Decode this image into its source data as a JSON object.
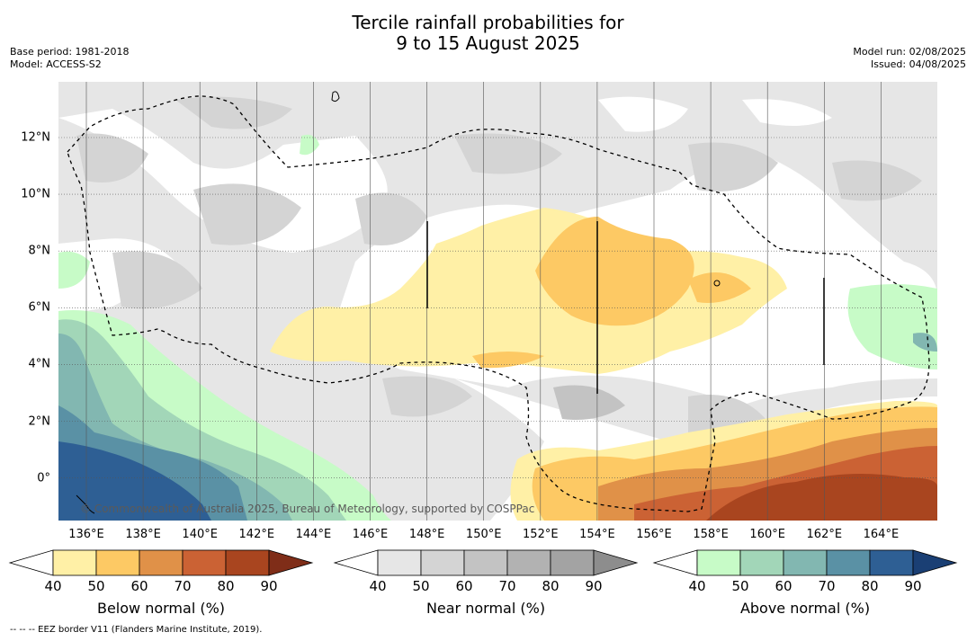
{
  "title_line1": "Tercile rainfall probabilities for",
  "title_line2": "9 to 15 August 2025",
  "meta_left": [
    "Base period: 1981-2018",
    "Model: ACCESS-S2"
  ],
  "meta_right": [
    "Model run: 02/08/2025",
    "Issued: 04/08/2025"
  ],
  "x_ticks": [
    "136°E",
    "138°E",
    "140°E",
    "142°E",
    "144°E",
    "146°E",
    "148°E",
    "150°E",
    "152°E",
    "154°E",
    "156°E",
    "158°E",
    "160°E",
    "162°E",
    "164°E"
  ],
  "y_ticks": [
    "12°N",
    "10°N",
    "8°N",
    "6°N",
    "4°N",
    "2°N",
    "0°"
  ],
  "copyright": "© Commonwealth of Australia 2025, Bureau of Meteorology, supported by COSPPac",
  "footer": "--  --  -- EEZ border V11 (Flanders Marine Institute, 2019).",
  "colorbars": [
    {
      "label": "Below normal (%)",
      "ticks": [
        "40",
        "50",
        "60",
        "70",
        "80",
        "90"
      ],
      "colors": [
        "#ffffff",
        "#fff0a6",
        "#fdc964",
        "#e09148",
        "#cb6234",
        "#a9451f",
        "#7f2d18"
      ]
    },
    {
      "label": "Near normal (%)",
      "ticks": [
        "40",
        "50",
        "60",
        "70",
        "80",
        "90"
      ],
      "colors": [
        "#ffffff",
        "#e6e6e6",
        "#d4d4d4",
        "#c3c3c3",
        "#b2b2b2",
        "#a3a3a3",
        "#8d8d8d"
      ]
    },
    {
      "label": "Above normal (%)",
      "ticks": [
        "40",
        "50",
        "60",
        "70",
        "80",
        "90"
      ],
      "colors": [
        "#ffffff",
        "#c7fbc7",
        "#a2d6b8",
        "#82b7b1",
        "#5a91a5",
        "#2e5f94",
        "#1a3f74"
      ]
    }
  ]
}
